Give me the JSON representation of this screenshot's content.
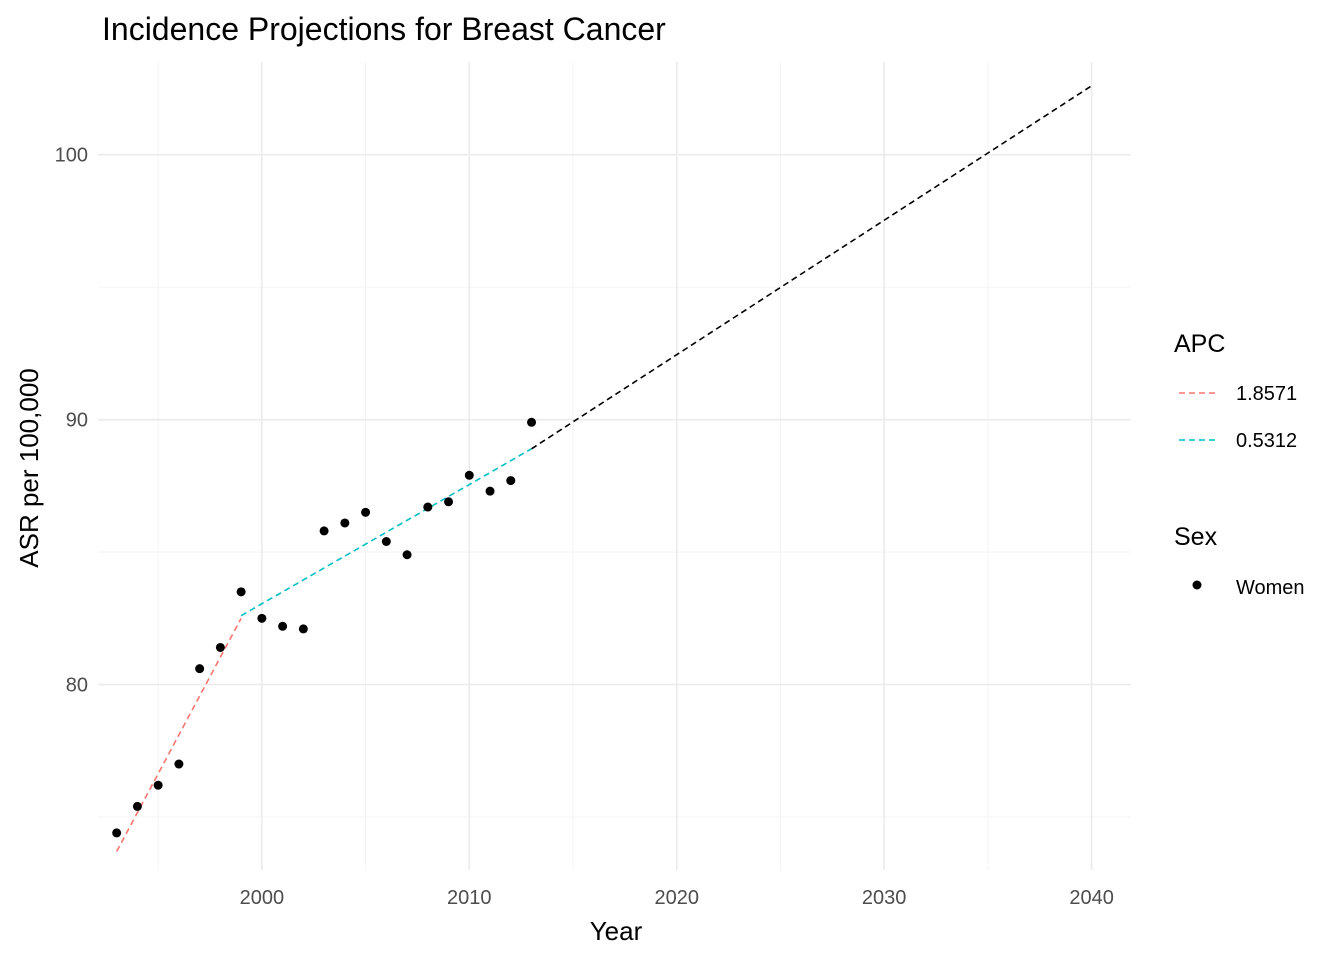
{
  "chart_data": {
    "type": "line",
    "title": "Incidence Projections for Breast Cancer",
    "xlabel": "Year",
    "ylabel": "ASR per 100,000",
    "xlim": [
      1992.1,
      2041.9
    ],
    "ylim": [
      73.0,
      103.5
    ],
    "x_ticks": [
      2000,
      2010,
      2020,
      2030,
      2040
    ],
    "y_ticks": [
      80,
      90,
      100
    ],
    "grid": true,
    "legend_position": "right",
    "points": {
      "name": "Women",
      "color": "#000000",
      "x": [
        1993,
        1994,
        1995,
        1996,
        1997,
        1998,
        1999,
        2000,
        2001,
        2002,
        2003,
        2004,
        2005,
        2006,
        2007,
        2008,
        2009,
        2010,
        2011,
        2012,
        2013
      ],
      "y": [
        74.4,
        75.4,
        76.2,
        77.0,
        80.6,
        81.4,
        83.5,
        82.5,
        82.2,
        82.1,
        85.8,
        86.1,
        86.5,
        85.4,
        84.9,
        86.7,
        86.9,
        87.9,
        87.3,
        87.7,
        89.9
      ]
    },
    "segments": [
      {
        "name": "1.8571",
        "color": "#f8766d",
        "x": [
          1993,
          1999
        ],
        "y": [
          73.7,
          82.5
        ]
      },
      {
        "name": "0.5312",
        "color": "#00bfc4",
        "x": [
          1999,
          2013
        ],
        "y": [
          82.6,
          88.9
        ]
      },
      {
        "name": "",
        "color": "#000000",
        "x": [
          2013,
          2040
        ],
        "y": [
          88.9,
          102.6
        ]
      }
    ],
    "legend": {
      "apc": {
        "title": "APC",
        "items": [
          "1.8571",
          "0.5312"
        ]
      },
      "sex": {
        "title": "Sex",
        "items": [
          "Women"
        ]
      }
    }
  }
}
